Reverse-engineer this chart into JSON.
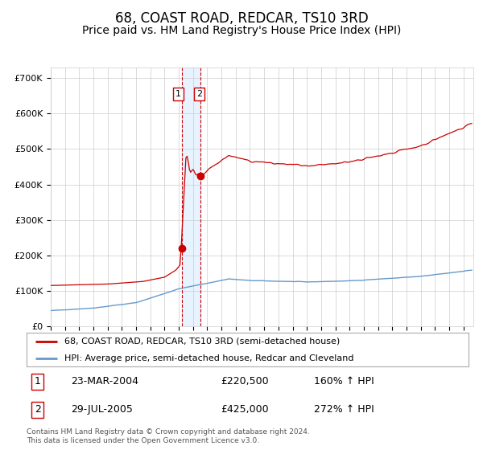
{
  "title": "68, COAST ROAD, REDCAR, TS10 3RD",
  "subtitle": "Price paid vs. HM Land Registry's House Price Index (HPI)",
  "title_fontsize": 12,
  "subtitle_fontsize": 10,
  "ylabel_ticks": [
    "£0",
    "£100K",
    "£200K",
    "£300K",
    "£400K",
    "£500K",
    "£600K",
    "£700K"
  ],
  "ytick_values": [
    0,
    100000,
    200000,
    300000,
    400000,
    500000,
    600000,
    700000
  ],
  "ylim": [
    0,
    730000
  ],
  "x_start_year": 1995,
  "x_end_year": 2024,
  "sale1_year": 2004.205,
  "sale1_price": 220500,
  "sale2_year": 2005.538,
  "sale2_price": 425000,
  "legend_line1": "68, COAST ROAD, REDCAR, TS10 3RD (semi-detached house)",
  "legend_line2": "HPI: Average price, semi-detached house, Redcar and Cleveland",
  "row1_label": "1",
  "row1_date": "23-MAR-2004",
  "row1_price": "£220,500",
  "row1_hpi": "160% ↑ HPI",
  "row2_label": "2",
  "row2_date": "29-JUL-2005",
  "row2_price": "£425,000",
  "row2_hpi": "272% ↑ HPI",
  "footnote": "Contains HM Land Registry data © Crown copyright and database right 2024.\nThis data is licensed under the Open Government Licence v3.0.",
  "red_color": "#cc0000",
  "blue_color": "#6699cc",
  "highlight_color": "#ddeeff",
  "grid_color": "#cccccc",
  "background_color": "#ffffff"
}
